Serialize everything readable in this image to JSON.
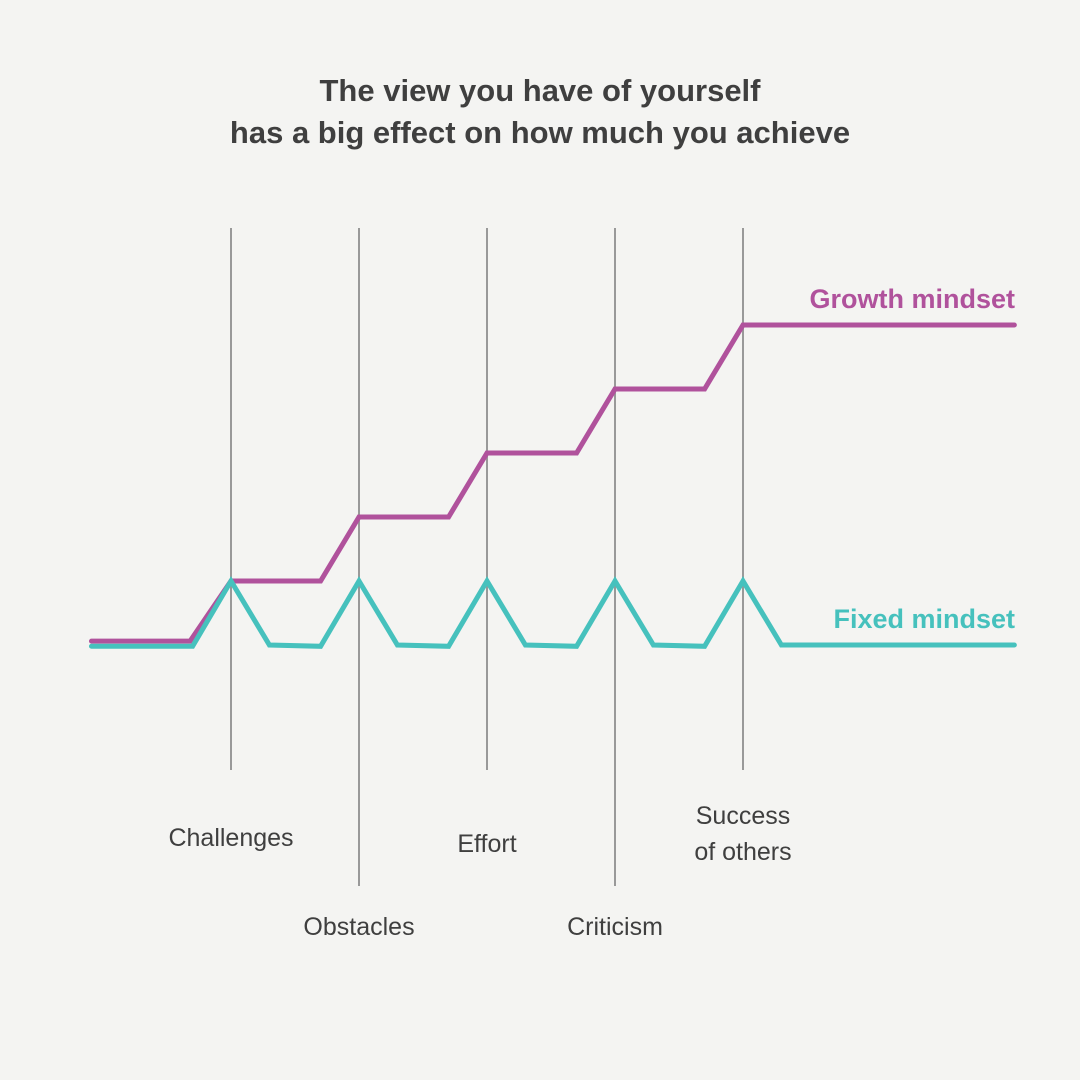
{
  "chart_data": {
    "type": "line",
    "title_lines": [
      "The view you have of yourself",
      "has a big effect on how much you achieve"
    ],
    "xlabel": "",
    "ylabel": "",
    "grid": false,
    "xlim": [
      -0.09,
      7.25
    ],
    "ylim": [
      0,
      5
    ],
    "events": [
      {
        "x": 1,
        "label": [
          "Challenges"
        ],
        "row": "upper"
      },
      {
        "x": 2,
        "label": [
          "Obstacles"
        ],
        "row": "lower"
      },
      {
        "x": 3,
        "label": [
          "Effort"
        ],
        "row": "upper"
      },
      {
        "x": 4,
        "label": [
          "Criticism"
        ],
        "row": "lower"
      },
      {
        "x": 5,
        "label": [
          "Success",
          "of others"
        ],
        "row": "upper"
      }
    ],
    "series": [
      {
        "name": "Growth mindset",
        "color": "#b0529c",
        "x": [
          -0.09,
          0.68,
          1,
          1.7,
          2,
          2.7,
          3,
          3.7,
          4,
          4.7,
          5,
          7.12
        ],
        "y": [
          0.06,
          0.06,
          1,
          1,
          2,
          2,
          3,
          3,
          4,
          4,
          5,
          5
        ]
      },
      {
        "name": "Fixed mindset",
        "color": "#46c1bd",
        "x": [
          -0.09,
          0.7,
          1,
          1.3,
          1.7,
          2,
          2.3,
          2.7,
          3,
          3.3,
          3.7,
          4,
          4.3,
          4.7,
          5,
          5.3,
          7.12
        ],
        "y": [
          -0.02,
          -0.02,
          1,
          0,
          -0.02,
          1,
          0,
          -0.02,
          1,
          0,
          -0.02,
          1,
          0,
          -0.02,
          1,
          0,
          0
        ]
      }
    ],
    "legend": "inline-right"
  },
  "axis_color": "#999999"
}
